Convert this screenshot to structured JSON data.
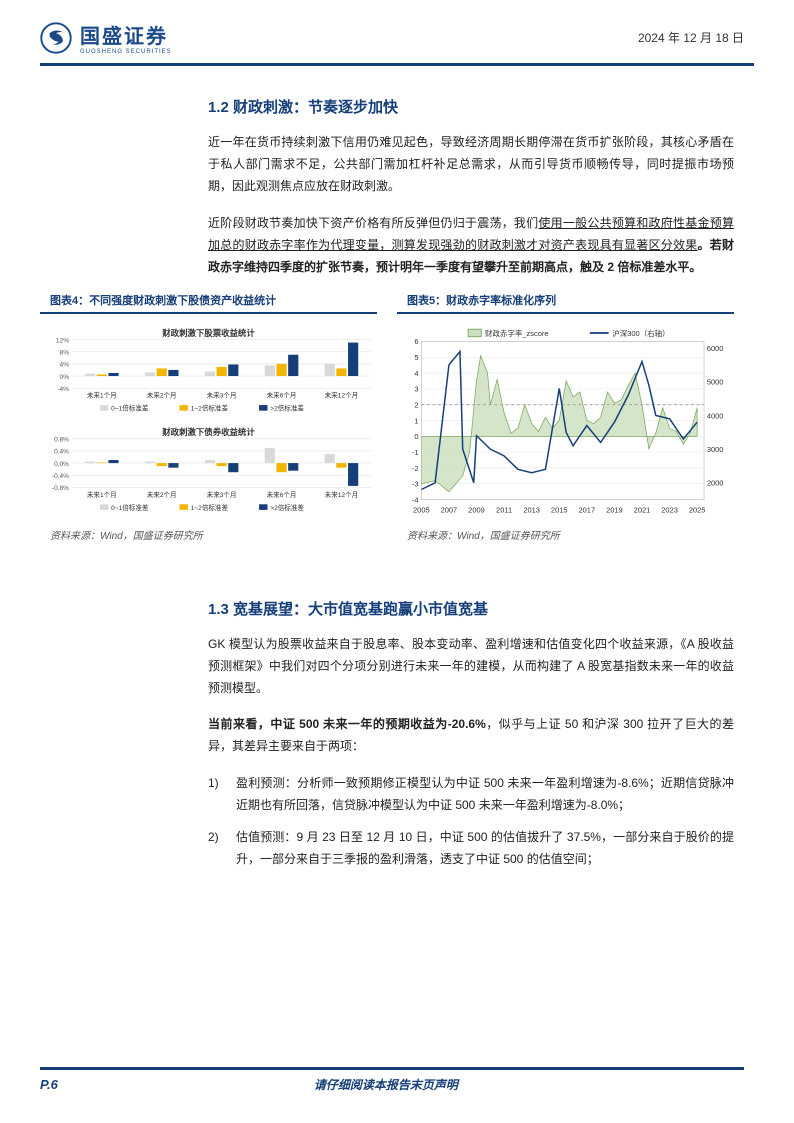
{
  "header": {
    "company_name": "国盛证券",
    "company_sub": "GUOSHENG SECURITIES",
    "date": "2024 年 12 月 18 日",
    "logo_color": "#1a4a8a"
  },
  "section12": {
    "title": "1.2 财政刺激：节奏逐步加快",
    "p1": "近一年在货币持续刺激下信用仍难见起色，导致经济周期长期停滞在货币扩张阶段，其核心矛盾在于私人部门需求不足，公共部门需加杠杆补足总需求，从而引导货币顺畅传导，同时提振市场预期，因此观测焦点应放在财政刺激。",
    "p2_a": "近阶段财政节奏加快下资产价格有所反弹但仍归于震荡，我们",
    "p2_u": "使用一般公共预算和政府性基金预算加总的财政赤字率作为代理变量，测算发现强劲的财政刺激才对资产表现具有显著区分效果",
    "p2_b": "。若财政赤字维持四季度的扩张节奏，预计明年一季度有望攀升至前期高点，触及 2 倍标准差水平。"
  },
  "chart4": {
    "title": "图表4：不同强度财政刺激下股债资产收益统计",
    "source": "资料来源：Wind，国盛证券研究所",
    "sub1_title": "财政刺激下股票收益统计",
    "sub2_title": "财政刺激下债券收益统计",
    "x_labels": [
      "未来1个月",
      "未来2个月",
      "未来3个月",
      "未来6个月",
      "未来12个月"
    ],
    "legend": [
      "0~1倍标准差",
      "1~2倍标准差",
      ">2倍标准差"
    ],
    "y1_ticks": [
      "-4%",
      "0%",
      "4%",
      "8%",
      "12%"
    ],
    "y2_ticks": [
      "-0.8%",
      "-0.4%",
      "0.0%",
      "0.4%",
      "0.8%"
    ],
    "colors": {
      "s1": "#d9d9d9",
      "s2": "#f2b600",
      "s3": "#163f7a",
      "grid": "#e6e6e6",
      "axis": "#888"
    },
    "stock_data": {
      "s1": [
        0.8,
        1.2,
        1.5,
        3.5,
        4.0
      ],
      "s2": [
        0.5,
        2.5,
        3.0,
        4.0,
        2.5
      ],
      "s3": [
        1.0,
        2.0,
        3.8,
        7.0,
        11.0
      ]
    },
    "bond_data": {
      "s1": [
        0.05,
        0.05,
        0.1,
        0.5,
        0.3
      ],
      "s2": [
        0.02,
        -0.1,
        -0.1,
        -0.3,
        -0.15
      ],
      "s3": [
        0.1,
        -0.15,
        -0.3,
        -0.25,
        -0.75
      ]
    },
    "stock_ylim": [
      -4,
      12
    ],
    "bond_ylim": [
      -0.8,
      0.8
    ]
  },
  "chart5": {
    "title": "图表5：财政赤字率标准化序列",
    "source": "资料来源：Wind，国盛证券研究所",
    "legend": [
      "财政赤字率_zscore",
      "沪深300（右轴）"
    ],
    "x_ticks": [
      "2005",
      "2007",
      "2009",
      "2011",
      "2013",
      "2015",
      "2017",
      "2019",
      "2021",
      "2023",
      "2025"
    ],
    "y1_ticks": [
      "-4",
      "-3",
      "-2",
      "-1",
      "0",
      "1",
      "2",
      "3",
      "4",
      "5",
      "6"
    ],
    "y2_ticks": [
      "2000",
      "3000",
      "4000",
      "5000",
      "6000"
    ],
    "y1_lim": [
      -4,
      6
    ],
    "y2_lim": [
      1500,
      6200
    ],
    "ref_line": 2,
    "colors": {
      "area": "#cde0c0",
      "area_stroke": "#7aa85c",
      "line": "#163f7a",
      "ref": "#999",
      "grid": "#e6e6e6"
    },
    "zscore": [
      [
        2005,
        -3
      ],
      [
        2006,
        -2.8
      ],
      [
        2007,
        -3.5
      ],
      [
        2008,
        -2.5
      ],
      [
        2008.5,
        -1
      ],
      [
        2009,
        3.5
      ],
      [
        2009.3,
        5.1
      ],
      [
        2009.8,
        4
      ],
      [
        2010,
        2.0
      ],
      [
        2010.5,
        3.6
      ],
      [
        2011,
        1.5
      ],
      [
        2011.5,
        0.2
      ],
      [
        2012,
        0.5
      ],
      [
        2012.5,
        2
      ],
      [
        2013,
        0.8
      ],
      [
        2013.5,
        0.3
      ],
      [
        2014,
        1.2
      ],
      [
        2014.5,
        0.5
      ],
      [
        2015,
        1.0
      ],
      [
        2015.5,
        3.5
      ],
      [
        2016,
        2.5
      ],
      [
        2016.5,
        2.8
      ],
      [
        2017,
        1.0
      ],
      [
        2017.5,
        0.8
      ],
      [
        2018,
        1.2
      ],
      [
        2018.5,
        2.8
      ],
      [
        2019,
        2.1
      ],
      [
        2019.5,
        2.3
      ],
      [
        2020,
        3.2
      ],
      [
        2020.5,
        4.0
      ],
      [
        2021,
        2.0
      ],
      [
        2021.5,
        -0.8
      ],
      [
        2022,
        0.2
      ],
      [
        2022.5,
        1.8
      ],
      [
        2023,
        0.5
      ],
      [
        2023.5,
        0.3
      ],
      [
        2024,
        -0.5
      ],
      [
        2024.5,
        0.2
      ],
      [
        2025,
        1.8
      ]
    ],
    "hs300": [
      [
        2005,
        1800
      ],
      [
        2006,
        2000
      ],
      [
        2007,
        5500
      ],
      [
        2007.8,
        5900
      ],
      [
        2008,
        3000
      ],
      [
        2008.8,
        2000
      ],
      [
        2009,
        3400
      ],
      [
        2010,
        3000
      ],
      [
        2011,
        2800
      ],
      [
        2012,
        2400
      ],
      [
        2013,
        2300
      ],
      [
        2014,
        2400
      ],
      [
        2015,
        4800
      ],
      [
        2015.5,
        3500
      ],
      [
        2016,
        3100
      ],
      [
        2017,
        3700
      ],
      [
        2018,
        3200
      ],
      [
        2019,
        3800
      ],
      [
        2020,
        4600
      ],
      [
        2021,
        5600
      ],
      [
        2021.5,
        4900
      ],
      [
        2022,
        4000
      ],
      [
        2023,
        3900
      ],
      [
        2024,
        3300
      ],
      [
        2024.8,
        3700
      ],
      [
        2025,
        3800
      ]
    ]
  },
  "section13": {
    "title": "1.3 宽基展望：大市值宽基跑赢小市值宽基",
    "p1": "GK 模型认为股票收益来自于股息率、股本变动率、盈利增速和估值变化四个收益来源，《A 股收益预测框架》中我们对四个分项分别进行未来一年的建模，从而构建了 A 股宽基指数未来一年的收益预测模型。",
    "p2_a": "当前来看，中证 500 未来一年的预期收益为-20.6%",
    "p2_b": "，似乎与上证 50 和沪深 300 拉开了巨大的差异，其差异主要来自于两项：",
    "li1_num": "1)",
    "li1": "盈利预测：分析师一致预期修正模型认为中证 500 未来一年盈利增速为-8.6%；近期信贷脉冲近期也有所回落，信贷脉冲模型认为中证 500 未来一年盈利增速为-8.0%；",
    "li2_num": "2)",
    "li2": "估值预测：9 月 23 日至 12 月 10 日，中证 500 的估值拔升了 37.5%，一部分来自于股价的提升，一部分来自于三季报的盈利滑落，透支了中证 500 的估值空间；"
  },
  "footer": {
    "page": "P.6",
    "note": "请仔细阅读本报告末页声明"
  }
}
